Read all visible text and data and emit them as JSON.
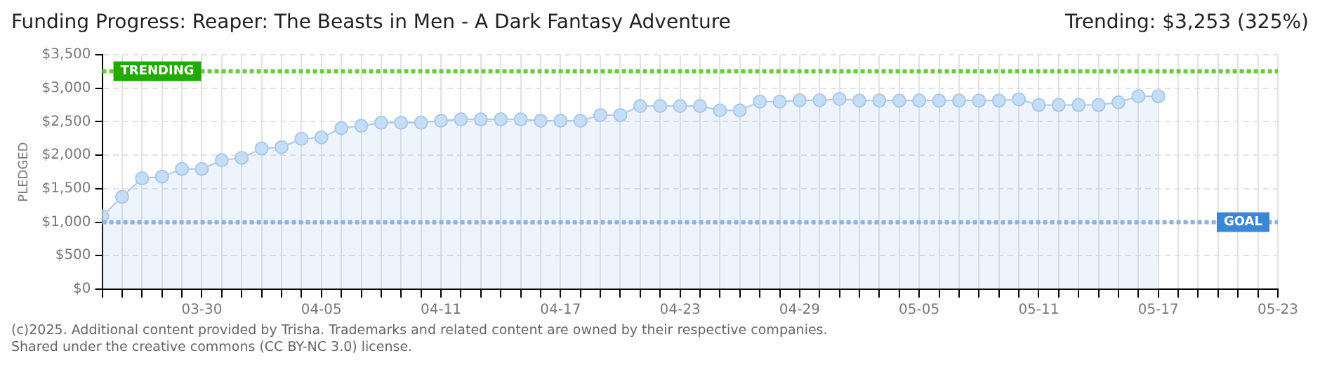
{
  "chart_data": {
    "type": "area",
    "title": "Funding Progress: Reaper: The Beasts in Men - A Dark Fantasy Adventure",
    "ylabel": "PLEDGED",
    "annotations": [
      "Trending: $3,253 (325%)",
      "(c)2025. Additional content provided by Trisha. Trademarks and related content are owned by their respective companies.",
      "Shared under the creative commons (CC BY-NC 3.0) license."
    ],
    "x": [
      "2025-03-25",
      "2025-03-26",
      "2025-03-27",
      "2025-03-28",
      "2025-03-29",
      "2025-03-30",
      "2025-03-31",
      "2025-04-01",
      "2025-04-02",
      "2025-04-03",
      "2025-04-04",
      "2025-04-05",
      "2025-04-06",
      "2025-04-07",
      "2025-04-08",
      "2025-04-09",
      "2025-04-10",
      "2025-04-11",
      "2025-04-12",
      "2025-04-13",
      "2025-04-14",
      "2025-04-15",
      "2025-04-16",
      "2025-04-17",
      "2025-04-18",
      "2025-04-19",
      "2025-04-20",
      "2025-04-21",
      "2025-04-22",
      "2025-04-23",
      "2025-04-24",
      "2025-04-25",
      "2025-04-26",
      "2025-04-27",
      "2025-04-28",
      "2025-04-29",
      "2025-04-30",
      "2025-05-01",
      "2025-05-02",
      "2025-05-03",
      "2025-05-04",
      "2025-05-05",
      "2025-05-06",
      "2025-05-07",
      "2025-05-08",
      "2025-05-09",
      "2025-05-10",
      "2025-05-11",
      "2025-05-12",
      "2025-05-13",
      "2025-05-14",
      "2025-05-15",
      "2025-05-16",
      "2025-05-17"
    ],
    "series": [
      {
        "color": "#a9c8ec",
        "values": [
          1090,
          1380,
          1655,
          1680,
          1795,
          1795,
          1925,
          1960,
          2100,
          2120,
          2245,
          2265,
          2405,
          2440,
          2485,
          2485,
          2485,
          2515,
          2535,
          2535,
          2535,
          2535,
          2515,
          2515,
          2515,
          2600,
          2600,
          2735,
          2735,
          2735,
          2735,
          2670,
          2670,
          2800,
          2800,
          2820,
          2820,
          2840,
          2815,
          2815,
          2815,
          2815,
          2815,
          2815,
          2815,
          2815,
          2835,
          2750,
          2750,
          2750,
          2750,
          2790,
          2880,
          2880
        ]
      }
    ],
    "xlim": [
      "2025-03-25",
      "2025-05-23"
    ],
    "xticks": [
      {
        "value": "2025-03-25",
        "label": null
      },
      {
        "value": "2025-03-26",
        "label": null
      },
      {
        "value": "2025-03-27",
        "label": null
      },
      {
        "value": "2025-03-28",
        "label": null
      },
      {
        "value": "2025-03-29",
        "label": null
      },
      {
        "value": "2025-03-30",
        "label": "03-30"
      },
      {
        "value": "2025-03-31",
        "label": null
      },
      {
        "value": "2025-04-01",
        "label": null
      },
      {
        "value": "2025-04-02",
        "label": null
      },
      {
        "value": "2025-04-03",
        "label": null
      },
      {
        "value": "2025-04-04",
        "label": null
      },
      {
        "value": "2025-04-05",
        "label": "04-05"
      },
      {
        "value": "2025-04-06",
        "label": null
      },
      {
        "value": "2025-04-07",
        "label": null
      },
      {
        "value": "2025-04-08",
        "label": null
      },
      {
        "value": "2025-04-09",
        "label": null
      },
      {
        "value": "2025-04-10",
        "label": null
      },
      {
        "value": "2025-04-11",
        "label": "04-11"
      },
      {
        "value": "2025-04-12",
        "label": null
      },
      {
        "value": "2025-04-13",
        "label": null
      },
      {
        "value": "2025-04-14",
        "label": null
      },
      {
        "value": "2025-04-15",
        "label": null
      },
      {
        "value": "2025-04-16",
        "label": null
      },
      {
        "value": "2025-04-17",
        "label": "04-17"
      },
      {
        "value": "2025-04-18",
        "label": null
      },
      {
        "value": "2025-04-19",
        "label": null
      },
      {
        "value": "2025-04-20",
        "label": null
      },
      {
        "value": "2025-04-21",
        "label": null
      },
      {
        "value": "2025-04-22",
        "label": null
      },
      {
        "value": "2025-04-23",
        "label": "04-23"
      },
      {
        "value": "2025-04-24",
        "label": null
      },
      {
        "value": "2025-04-25",
        "label": null
      },
      {
        "value": "2025-04-26",
        "label": null
      },
      {
        "value": "2025-04-27",
        "label": null
      },
      {
        "value": "2025-04-28",
        "label": null
      },
      {
        "value": "2025-04-29",
        "label": "04-29"
      },
      {
        "value": "2025-04-30",
        "label": null
      },
      {
        "value": "2025-05-01",
        "label": null
      },
      {
        "value": "2025-05-02",
        "label": null
      },
      {
        "value": "2025-05-03",
        "label": null
      },
      {
        "value": "2025-05-04",
        "label": null
      },
      {
        "value": "2025-05-05",
        "label": "05-05"
      },
      {
        "value": "2025-05-06",
        "label": null
      },
      {
        "value": "2025-05-07",
        "label": null
      },
      {
        "value": "2025-05-08",
        "label": null
      },
      {
        "value": "2025-05-09",
        "label": null
      },
      {
        "value": "2025-05-10",
        "label": null
      },
      {
        "value": "2025-05-11",
        "label": "05-11"
      },
      {
        "value": "2025-05-12",
        "label": null
      },
      {
        "value": "2025-05-13",
        "label": null
      },
      {
        "value": "2025-05-14",
        "label": null
      },
      {
        "value": "2025-05-15",
        "label": null
      },
      {
        "value": "2025-05-16",
        "label": null
      },
      {
        "value": "2025-05-17",
        "label": "05-17"
      },
      {
        "value": "2025-05-18",
        "label": null
      },
      {
        "value": "2025-05-19",
        "label": null
      },
      {
        "value": "2025-05-20",
        "label": null
      },
      {
        "value": "2025-05-21",
        "label": null
      },
      {
        "value": "2025-05-22",
        "label": null
      },
      {
        "value": "2025-05-23",
        "label": "05-23"
      }
    ],
    "ylim": [
      0,
      3500
    ],
    "yticks": [
      {
        "value": 0,
        "label": "$0"
      },
      {
        "value": 500,
        "label": "$500"
      },
      {
        "value": 1000,
        "label": "$1,000"
      },
      {
        "value": 1500,
        "label": "$1,500"
      },
      {
        "value": 2000,
        "label": "$2,000"
      },
      {
        "value": 2500,
        "label": "$2,500"
      },
      {
        "value": 3000,
        "label": "$3,000"
      },
      {
        "value": 3500,
        "label": "$3,500"
      }
    ],
    "ref_lines": [
      {
        "axis": "y",
        "value": 3253,
        "label": "TRENDING",
        "color": "#66cc44",
        "line_style": "dotted"
      },
      {
        "axis": "y",
        "value": 1000,
        "label": "GOAL",
        "color": "#8fb3de",
        "line_style": "dotted"
      }
    ],
    "grid": true,
    "legend": false,
    "marker": "circle",
    "line_style": "solid"
  }
}
